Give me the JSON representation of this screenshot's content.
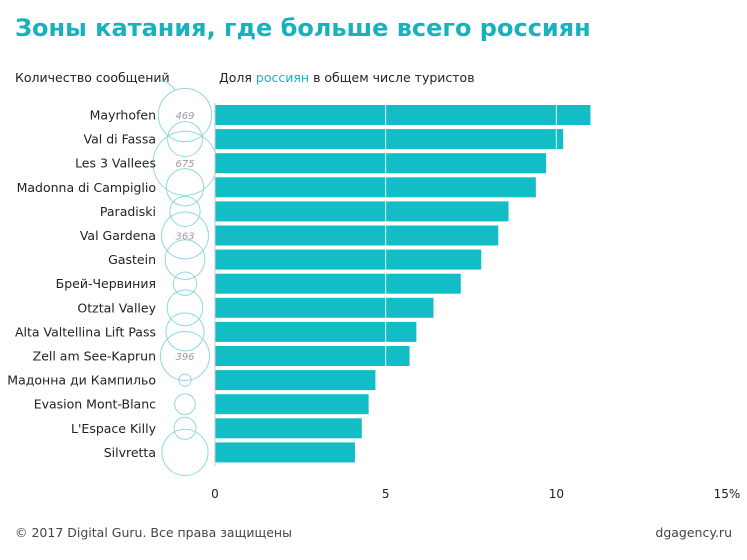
{
  "title": "Зоны катания, где больше всего россиян",
  "header": {
    "count_label": "Количество сообщений",
    "share_prefix": "Доля",
    "share_highlight": "россиян",
    "share_suffix": "в общем числе туристов"
  },
  "footer": {
    "copyright": "© 2017 Digital Guru. Все права защищены",
    "site": "dgagency.ru"
  },
  "colors": {
    "accent": "#16b3bf",
    "bar": "#13bdc6",
    "circle": "#8fd8de",
    "circle_text": "#9a9a9a"
  },
  "chart_data": {
    "type": "bar",
    "orientation": "horizontal",
    "categories": [
      "Mayrhofen",
      "Val di Fassa",
      "Les 3 Vallees",
      "Madonna di Campiglio",
      "Paradiski",
      "Val Gardena",
      "Gastein",
      "Брей-Червиния",
      "Otztal Valley",
      "Alta Valtellina Lift Pass",
      "Zell am See-Kaprun",
      "Мадонна ди Кампильо",
      "Evasion Mont-Blanc",
      "L'Espace Killy",
      "Silvretta"
    ],
    "series": [
      {
        "values": [
          11.0,
          10.2,
          9.7,
          9.4,
          8.6,
          8.3,
          7.8,
          7.2,
          6.4,
          5.9,
          5.7,
          4.7,
          4.5,
          4.3,
          4.1
        ]
      }
    ],
    "message_counts": [
      469,
      200,
      675,
      230,
      150,
      363,
      260,
      90,
      210,
      240,
      396,
      25,
      70,
      80,
      350
    ],
    "message_count_labels": [
      "469",
      "",
      "675",
      "",
      "",
      "363",
      "",
      "",
      "",
      "",
      "396",
      "",
      "",
      "",
      ""
    ],
    "xlim": [
      0,
      15
    ],
    "ticks": [
      "0",
      "5",
      "10",
      "15%"
    ],
    "tick_values": [
      0,
      5,
      10,
      15
    ],
    "grid": true
  }
}
